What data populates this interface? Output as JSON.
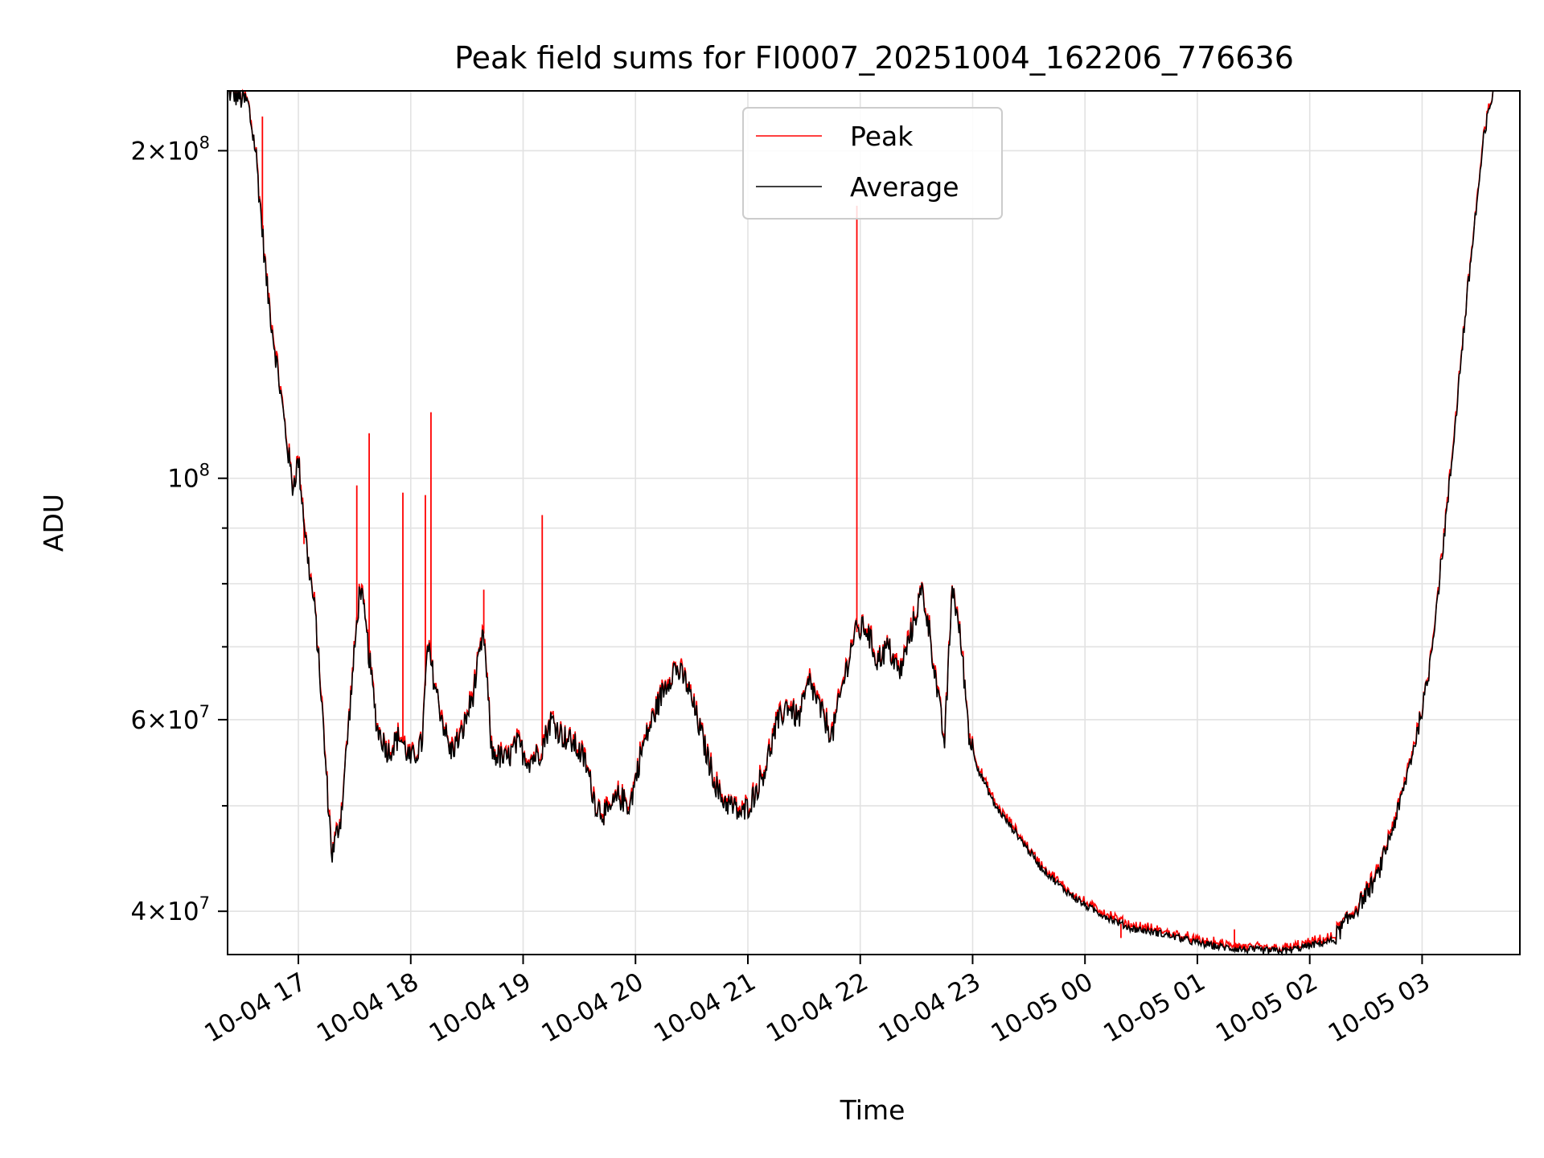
{
  "chart_data": {
    "type": "line",
    "title": "Peak field sums for FI0007_20251004_162206_776636",
    "xlabel": "Time",
    "ylabel": "ADU",
    "yscale": "log",
    "grid": true,
    "legend_position": "top-center",
    "x_unit": "hours since 10-04 16:00",
    "x_ticks": [
      {
        "value": 1,
        "label": "10-04 17"
      },
      {
        "value": 2,
        "label": "10-04 18"
      },
      {
        "value": 3,
        "label": "10-04 19"
      },
      {
        "value": 4,
        "label": "10-04 20"
      },
      {
        "value": 5,
        "label": "10-04 21"
      },
      {
        "value": 6,
        "label": "10-04 22"
      },
      {
        "value": 7,
        "label": "10-04 23"
      },
      {
        "value": 8,
        "label": "10-05 00"
      },
      {
        "value": 9,
        "label": "10-05 01"
      },
      {
        "value": 10,
        "label": "10-05 02"
      },
      {
        "value": 11,
        "label": "10-05 03"
      }
    ],
    "y_ticks_major": [
      {
        "value": 40000000,
        "mantissa": "4",
        "exp": "7"
      },
      {
        "value": 60000000,
        "mantissa": "6",
        "exp": "7"
      },
      {
        "value": 100000000,
        "mantissa": "",
        "exp": "8"
      },
      {
        "value": 200000000,
        "mantissa": "2",
        "exp": "8"
      }
    ],
    "y_ticks_minor": [
      50000000,
      70000000,
      80000000,
      90000000
    ],
    "xlim": [
      0.37,
      11.87
    ],
    "ylim": [
      36500000,
      227000000
    ],
    "series": [
      {
        "name": "Peak",
        "color": "#ff0000",
        "spikes": [
          [
            0.68,
            215000000
          ],
          [
            1.05,
            87000000
          ],
          [
            1.52,
            98500000
          ],
          [
            1.63,
            110000000
          ],
          [
            1.93,
            97000000
          ],
          [
            2.13,
            96500000
          ],
          [
            2.18,
            115000000
          ],
          [
            2.65,
            79000000
          ],
          [
            3.17,
            92500000
          ],
          [
            5.97,
            178000000
          ],
          [
            8.32,
            37800000
          ],
          [
            9.1,
            37500000
          ],
          [
            9.33,
            38500000
          ],
          [
            9.8,
            36900000
          ]
        ]
      },
      {
        "name": "Average",
        "color": "#000000",
        "points": [
          [
            0.37,
            227000000
          ],
          [
            0.45,
            225000000
          ],
          [
            0.55,
            221000000
          ],
          [
            0.62,
            200000000
          ],
          [
            0.72,
            150000000
          ],
          [
            0.85,
            118000000
          ],
          [
            0.95,
            98000000
          ],
          [
            1.0,
            104000000
          ],
          [
            1.08,
            85000000
          ],
          [
            1.15,
            75000000
          ],
          [
            1.2,
            64000000
          ],
          [
            1.25,
            53000000
          ],
          [
            1.3,
            45000000
          ],
          [
            1.38,
            49000000
          ],
          [
            1.45,
            60000000
          ],
          [
            1.55,
            80000000
          ],
          [
            1.62,
            70000000
          ],
          [
            1.7,
            59000000
          ],
          [
            1.8,
            56000000
          ],
          [
            1.9,
            58000000
          ],
          [
            2.0,
            55000000
          ],
          [
            2.1,
            57000000
          ],
          [
            2.15,
            70000000
          ],
          [
            2.25,
            62000000
          ],
          [
            2.35,
            56000000
          ],
          [
            2.45,
            58000000
          ],
          [
            2.55,
            63000000
          ],
          [
            2.65,
            72000000
          ],
          [
            2.72,
            56000000
          ],
          [
            2.85,
            55000000
          ],
          [
            2.95,
            57000000
          ],
          [
            3.05,
            55000000
          ],
          [
            3.15,
            56000000
          ],
          [
            3.25,
            60000000
          ],
          [
            3.35,
            58000000
          ],
          [
            3.45,
            57000000
          ],
          [
            3.55,
            55000000
          ],
          [
            3.65,
            50000000
          ],
          [
            3.75,
            49000000
          ],
          [
            3.85,
            51000000
          ],
          [
            3.95,
            50000000
          ],
          [
            4.05,
            56000000
          ],
          [
            4.15,
            60000000
          ],
          [
            4.25,
            64000000
          ],
          [
            4.35,
            67000000
          ],
          [
            4.45,
            65000000
          ],
          [
            4.55,
            60000000
          ],
          [
            4.65,
            55000000
          ],
          [
            4.75,
            51000000
          ],
          [
            4.85,
            50000000
          ],
          [
            4.95,
            49000000
          ],
          [
            5.05,
            51000000
          ],
          [
            5.15,
            54000000
          ],
          [
            5.25,
            59000000
          ],
          [
            5.35,
            62000000
          ],
          [
            5.45,
            60000000
          ],
          [
            5.55,
            65000000
          ],
          [
            5.65,
            61000000
          ],
          [
            5.75,
            58000000
          ],
          [
            5.85,
            65000000
          ],
          [
            5.95,
            72000000
          ],
          [
            6.05,
            73000000
          ],
          [
            6.15,
            68000000
          ],
          [
            6.25,
            70000000
          ],
          [
            6.35,
            66000000
          ],
          [
            6.45,
            72000000
          ],
          [
            6.55,
            79000000
          ],
          [
            6.62,
            72000000
          ],
          [
            6.7,
            62000000
          ],
          [
            6.75,
            57000000
          ],
          [
            6.82,
            80000000
          ],
          [
            6.9,
            70000000
          ],
          [
            6.97,
            58000000
          ],
          [
            7.05,
            54000000
          ],
          [
            7.2,
            50000000
          ],
          [
            7.4,
            47000000
          ],
          [
            7.6,
            44000000
          ],
          [
            7.8,
            42000000
          ],
          [
            8.0,
            40500000
          ],
          [
            8.2,
            39500000
          ],
          [
            8.4,
            38600000
          ],
          [
            8.6,
            38300000
          ],
          [
            8.8,
            37900000
          ],
          [
            9.0,
            37400000
          ],
          [
            9.2,
            37100000
          ],
          [
            9.4,
            36900000
          ],
          [
            9.6,
            36800000
          ],
          [
            9.8,
            36800000
          ],
          [
            10.0,
            37200000
          ],
          [
            10.2,
            37600000
          ],
          [
            10.4,
            40000000
          ],
          [
            10.6,
            43000000
          ],
          [
            10.8,
            50000000
          ],
          [
            10.95,
            58000000
          ],
          [
            11.05,
            65000000
          ],
          [
            11.15,
            80000000
          ],
          [
            11.25,
            100000000
          ],
          [
            11.35,
            130000000
          ],
          [
            11.45,
            165000000
          ],
          [
            11.55,
            205000000
          ],
          [
            11.63,
            227000000
          ]
        ]
      }
    ]
  }
}
